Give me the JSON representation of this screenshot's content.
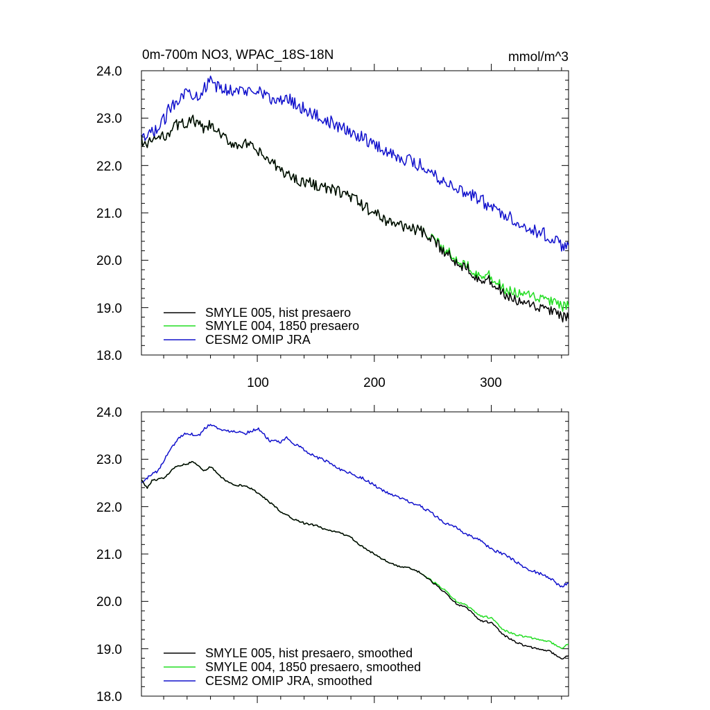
{
  "chart_data": [
    {
      "type": "line",
      "title": "0m-700m NO3, WPAC_18S-18N",
      "units": "mmol/m^3",
      "xlim": [
        1,
        366
      ],
      "ylim": [
        18.0,
        24.0
      ],
      "yticks": [
        "24.0",
        "23.0",
        "22.0",
        "21.0",
        "20.0",
        "19.0",
        "18.0"
      ],
      "xticks": [
        "100",
        "200",
        "300"
      ],
      "legend_position": "bottom-left",
      "series": [
        {
          "name": "SMYLE 005, hist presaero",
          "color": "#000000",
          "anchors": [
            [
              1,
              22.55
            ],
            [
              6,
              22.4
            ],
            [
              10,
              22.55
            ],
            [
              20,
              22.6
            ],
            [
              30,
              22.85
            ],
            [
              40,
              22.9
            ],
            [
              45,
              22.95
            ],
            [
              55,
              22.75
            ],
            [
              60,
              22.85
            ],
            [
              70,
              22.6
            ],
            [
              80,
              22.45
            ],
            [
              90,
              22.45
            ],
            [
              100,
              22.3
            ],
            [
              110,
              22.1
            ],
            [
              120,
              21.9
            ],
            [
              130,
              21.75
            ],
            [
              140,
              21.65
            ],
            [
              150,
              21.6
            ],
            [
              160,
              21.5
            ],
            [
              170,
              21.45
            ],
            [
              180,
              21.35
            ],
            [
              190,
              21.15
            ],
            [
              200,
              21.0
            ],
            [
              210,
              20.85
            ],
            [
              220,
              20.75
            ],
            [
              230,
              20.7
            ],
            [
              240,
              20.6
            ],
            [
              250,
              20.4
            ],
            [
              260,
              20.2
            ],
            [
              270,
              19.95
            ],
            [
              280,
              19.85
            ],
            [
              290,
              19.6
            ],
            [
              300,
              19.55
            ],
            [
              310,
              19.3
            ],
            [
              320,
              19.15
            ],
            [
              330,
              19.05
            ],
            [
              340,
              19.0
            ],
            [
              350,
              18.95
            ],
            [
              360,
              18.78
            ],
            [
              366,
              18.85
            ]
          ],
          "noise": 0.12,
          "smoothed_noise": 0.02
        },
        {
          "name": "SMYLE 004, 1850 presaero",
          "color": "#22dd22",
          "anchors": [
            [
              1,
              22.55
            ],
            [
              6,
              22.4
            ],
            [
              10,
              22.55
            ],
            [
              20,
              22.6
            ],
            [
              30,
              22.85
            ],
            [
              40,
              22.9
            ],
            [
              45,
              22.95
            ],
            [
              55,
              22.75
            ],
            [
              60,
              22.85
            ],
            [
              70,
              22.6
            ],
            [
              80,
              22.45
            ],
            [
              90,
              22.45
            ],
            [
              100,
              22.3
            ],
            [
              110,
              22.1
            ],
            [
              120,
              21.9
            ],
            [
              130,
              21.75
            ],
            [
              140,
              21.65
            ],
            [
              150,
              21.6
            ],
            [
              160,
              21.5
            ],
            [
              170,
              21.45
            ],
            [
              180,
              21.35
            ],
            [
              190,
              21.15
            ],
            [
              200,
              21.0
            ],
            [
              210,
              20.85
            ],
            [
              220,
              20.75
            ],
            [
              230,
              20.7
            ],
            [
              240,
              20.6
            ],
            [
              250,
              20.42
            ],
            [
              260,
              20.25
            ],
            [
              270,
              20.0
            ],
            [
              280,
              19.9
            ],
            [
              290,
              19.7
            ],
            [
              300,
              19.65
            ],
            [
              310,
              19.4
            ],
            [
              320,
              19.3
            ],
            [
              330,
              19.25
            ],
            [
              340,
              19.2
            ],
            [
              350,
              19.15
            ],
            [
              360,
              19.0
            ],
            [
              366,
              19.1
            ]
          ],
          "noise": 0.12,
          "smoothed_noise": 0.02
        },
        {
          "name": "CESM2 OMIP JRA",
          "color": "#1010cc",
          "anchors": [
            [
              1,
              22.5
            ],
            [
              6,
              22.6
            ],
            [
              10,
              22.7
            ],
            [
              15,
              22.75
            ],
            [
              20,
              22.95
            ],
            [
              25,
              23.2
            ],
            [
              30,
              23.35
            ],
            [
              35,
              23.5
            ],
            [
              40,
              23.55
            ],
            [
              50,
              23.5
            ],
            [
              55,
              23.65
            ],
            [
              60,
              23.75
            ],
            [
              70,
              23.6
            ],
            [
              80,
              23.6
            ],
            [
              90,
              23.55
            ],
            [
              100,
              23.65
            ],
            [
              105,
              23.55
            ],
            [
              110,
              23.4
            ],
            [
              120,
              23.35
            ],
            [
              125,
              23.45
            ],
            [
              130,
              23.35
            ],
            [
              140,
              23.2
            ],
            [
              150,
              23.05
            ],
            [
              160,
              22.95
            ],
            [
              170,
              22.8
            ],
            [
              180,
              22.7
            ],
            [
              190,
              22.6
            ],
            [
              200,
              22.45
            ],
            [
              210,
              22.3
            ],
            [
              220,
              22.2
            ],
            [
              230,
              22.1
            ],
            [
              240,
              22.0
            ],
            [
              250,
              21.85
            ],
            [
              260,
              21.65
            ],
            [
              270,
              21.55
            ],
            [
              280,
              21.4
            ],
            [
              290,
              21.3
            ],
            [
              300,
              21.1
            ],
            [
              310,
              21.0
            ],
            [
              320,
              20.85
            ],
            [
              330,
              20.7
            ],
            [
              340,
              20.6
            ],
            [
              350,
              20.5
            ],
            [
              360,
              20.3
            ],
            [
              366,
              20.4
            ]
          ],
          "noise": 0.14,
          "smoothed_noise": 0.03
        }
      ]
    },
    {
      "type": "line",
      "xlim": [
        1,
        366
      ],
      "ylim": [
        18.0,
        24.0
      ],
      "yticks": [
        "24.0",
        "23.0",
        "22.0",
        "21.0",
        "20.0",
        "19.0",
        "18.0"
      ],
      "legend_position": "bottom-left",
      "series_names": [
        "SMYLE 005, hist presaero, smoothed",
        "SMYLE 004, 1850 presaero, smoothed",
        "CESM2 OMIP JRA, smoothed"
      ]
    }
  ]
}
